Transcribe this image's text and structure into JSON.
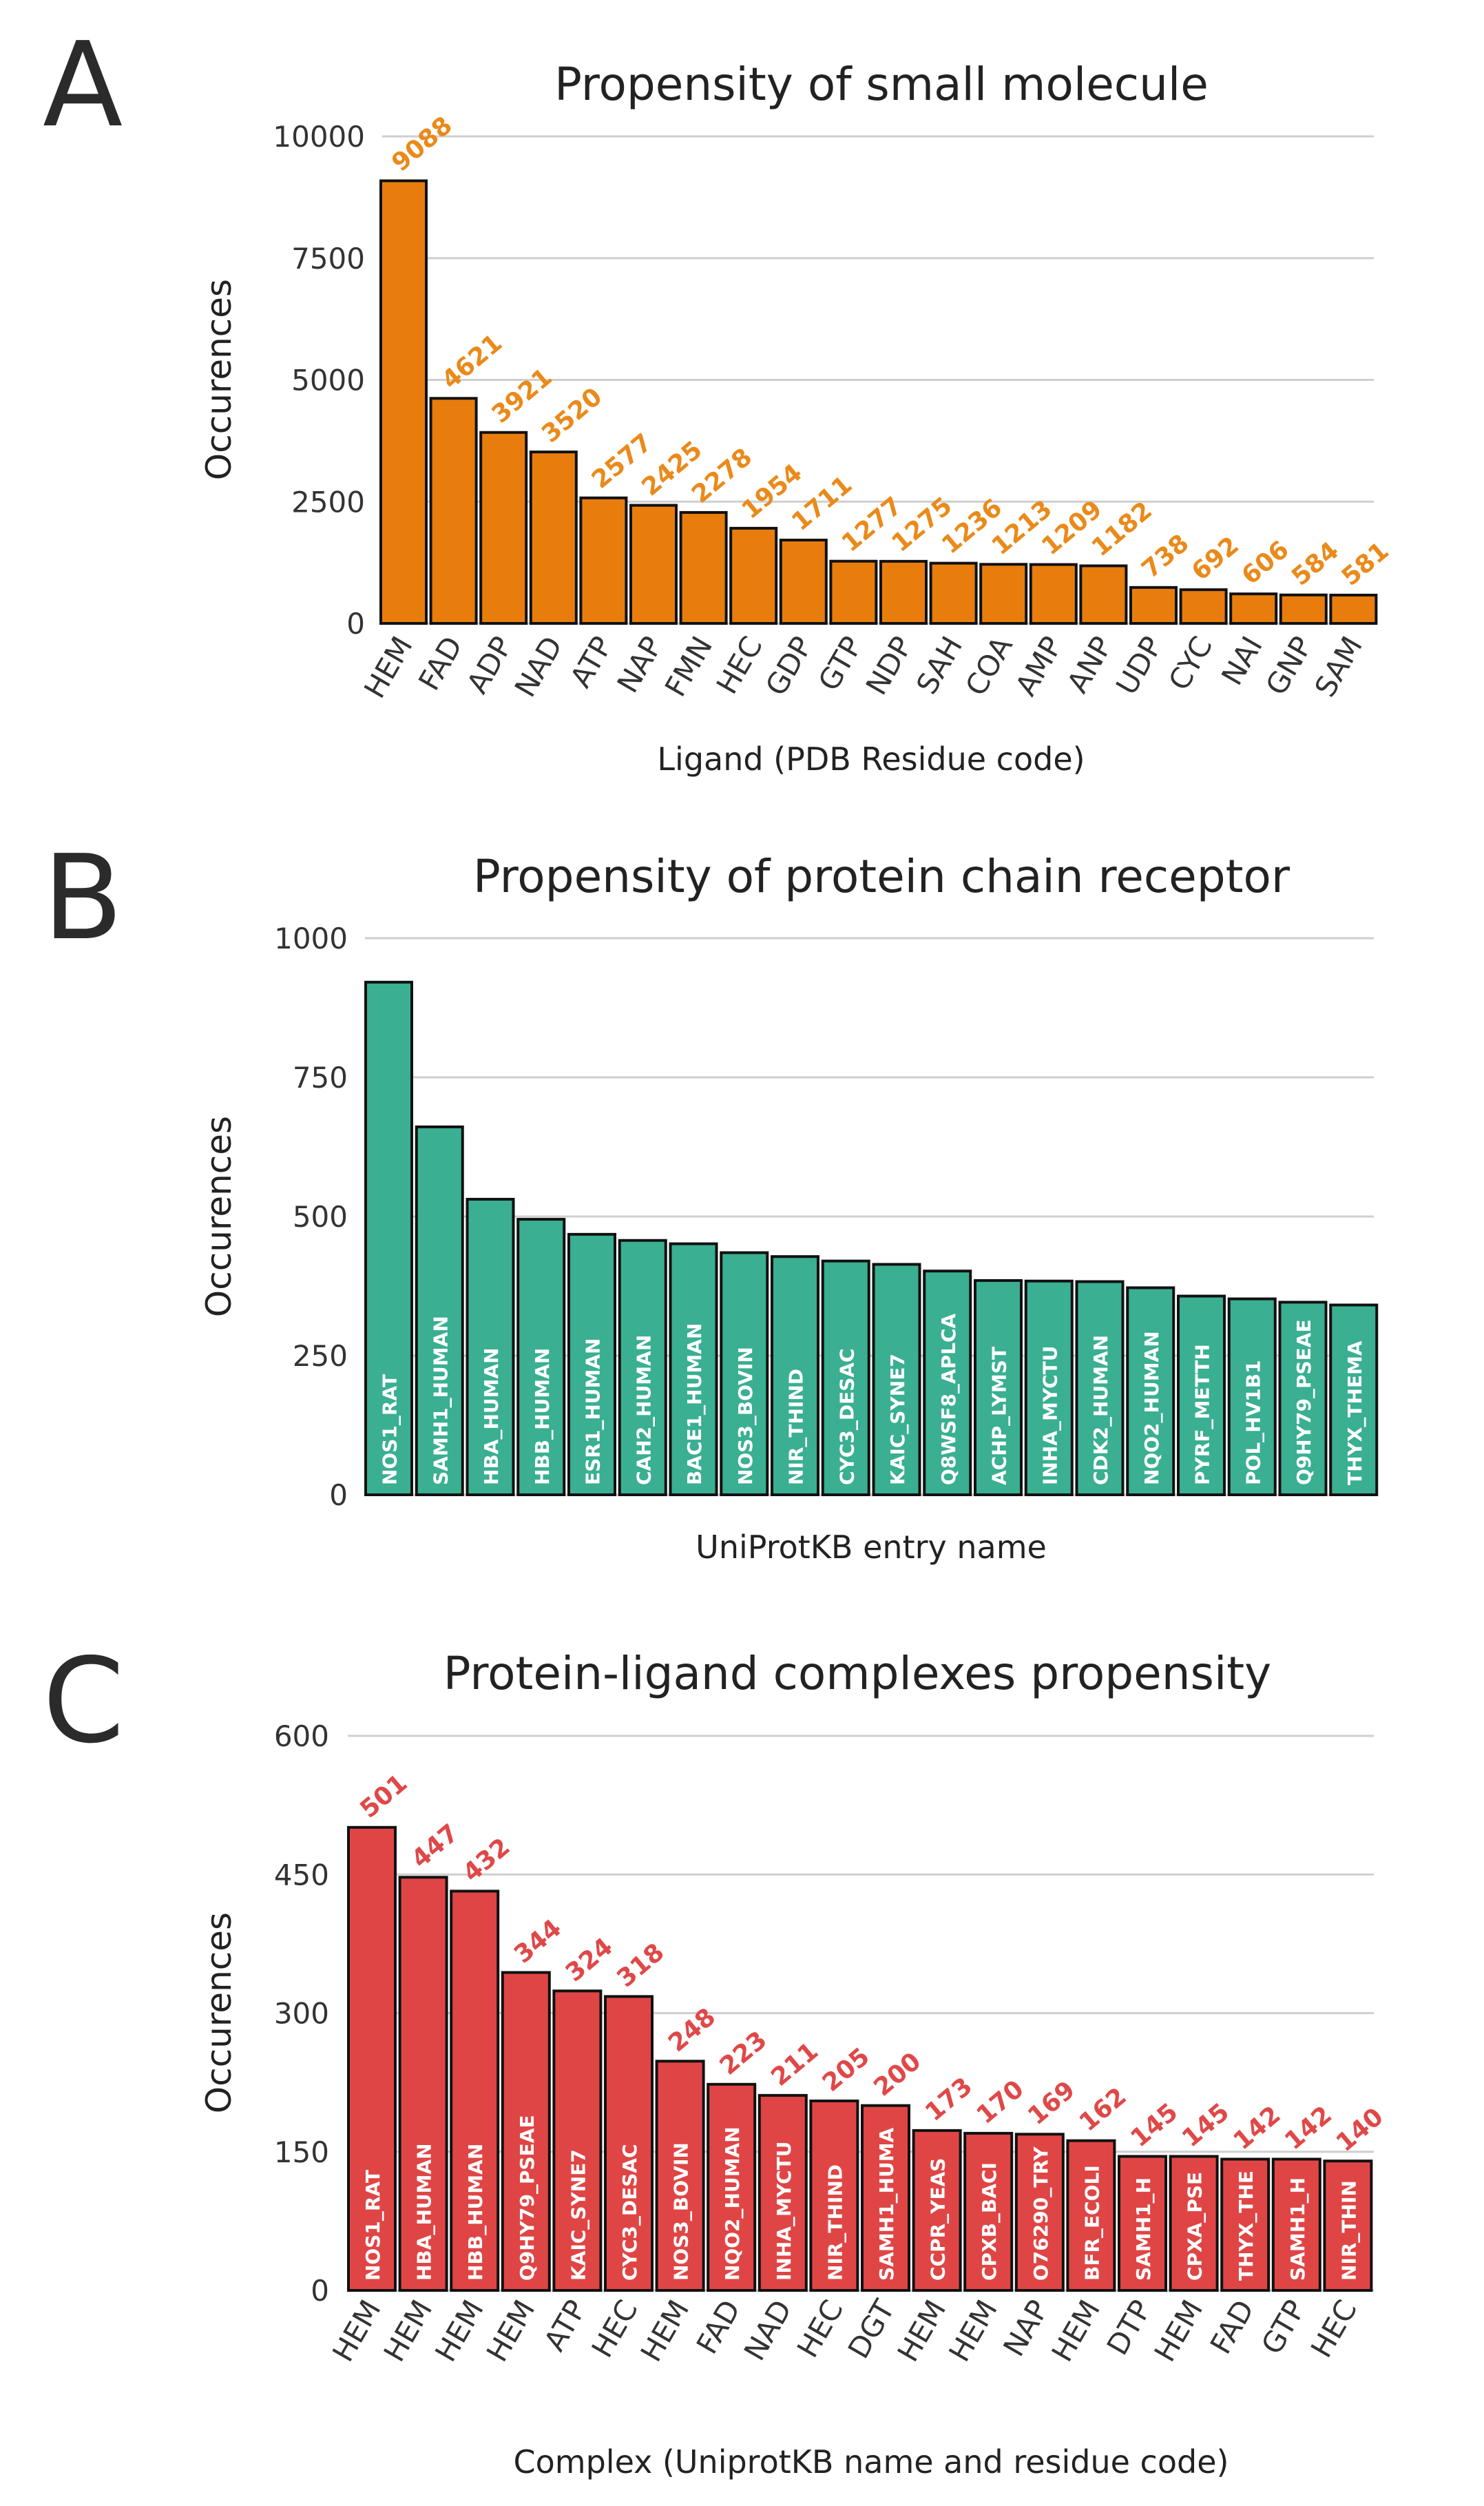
{
  "chart_data": [
    {
      "panel": "A",
      "type": "bar",
      "title": "Propensity of small molecule",
      "xlabel": "Ligand (PDB Residue code)",
      "ylabel": "Occurences",
      "ylim": [
        0,
        10000
      ],
      "yticks": [
        "0",
        "2500",
        "5000",
        "7500",
        "10000"
      ],
      "ytick_values": [
        0,
        2500,
        5000,
        7500,
        10000
      ],
      "categories": [
        "HEM",
        "FAD",
        "ADP",
        "NAD",
        "ATP",
        "NAP",
        "FMN",
        "HEC",
        "GDP",
        "GTP",
        "NDP",
        "SAH",
        "COA",
        "AMP",
        "ANP",
        "UDP",
        "CYC",
        "NAI",
        "GNP",
        "SAM"
      ],
      "values": [
        9088,
        4621,
        3921,
        3520,
        2577,
        2425,
        2278,
        1954,
        1711,
        1277,
        1275,
        1236,
        1213,
        1209,
        1182,
        738,
        692,
        606,
        584,
        581
      ],
      "value_labels": [
        "9088",
        "4621",
        "3921",
        "3520",
        "2577",
        "2425",
        "2278",
        "1954",
        "1711",
        "1277",
        "1275",
        "1236",
        "1213",
        "1209",
        "1182",
        "738",
        "692",
        "606",
        "584",
        "581"
      ],
      "bar_color": "#e87d0d",
      "label_color": "#ea8a1a",
      "grid": true
    },
    {
      "panel": "B",
      "type": "bar",
      "title": "Propensity of protein chain receptor",
      "xlabel": "UniProtKB entry name",
      "ylabel": "Occurences",
      "ylim": [
        0,
        1000
      ],
      "yticks": [
        "0",
        "250",
        "500",
        "750",
        "1000"
      ],
      "ytick_values": [
        0,
        250,
        500,
        750,
        1000
      ],
      "categories": [
        "NOS1_RAT",
        "SAMH1_HUMAN",
        "HBA_HUMAN",
        "HBB_HUMAN",
        "ESR1_HUMAN",
        "CAH2_HUMAN",
        "BACE1_HUMAN",
        "NOS3_BOVIN",
        "NIR_THIND",
        "CYC3_DESAC",
        "KAIC_SYNE7",
        "Q8WSF8_APLCA",
        "ACHP_LYMST",
        "INHA_MYCTU",
        "CDK2_HUMAN",
        "NQO2_HUMAN",
        "PYRF_METTH",
        "POL_HV1B1",
        "Q9HY79_PSEAE",
        "THYX_THEMA"
      ],
      "values": [
        921,
        661,
        531,
        495,
        468,
        457,
        451,
        435,
        428,
        420,
        414,
        402,
        385,
        384,
        383,
        372,
        357,
        352,
        346,
        341
      ],
      "bar_color": "#3aaf92",
      "grid": true
    },
    {
      "panel": "C",
      "type": "bar",
      "title": "Protein-ligand complexes propensity",
      "xlabel": "Complex (UniprotKB name and residue code)",
      "ylabel": "Occurences",
      "ylim": [
        0,
        600
      ],
      "yticks": [
        "0",
        "150",
        "300",
        "450",
        "600"
      ],
      "ytick_values": [
        0,
        150,
        300,
        450,
        600
      ],
      "categories": [
        "HEM",
        "HEM",
        "HEM",
        "HEM",
        "ATP",
        "HEC",
        "HEM",
        "FAD",
        "NAD",
        "HEC",
        "DGT",
        "HEM",
        "HEM",
        "NAP",
        "HEM",
        "DTP",
        "HEM",
        "FAD",
        "GTP",
        "HEC"
      ],
      "inner_labels": [
        "NOS1_RAT",
        "HBA_HUMAN",
        "HBB_HUMAN",
        "Q9HY79_PSEAE",
        "KAIC_SYNE7",
        "CYC3_DESAC",
        "NOS3_BOVIN",
        "NQO2_HUMAN",
        "INHA_MYCTU",
        "NIR_THIND",
        "SAMH1_HUMA",
        "CCPR_YEAS",
        "CPXB_BACI",
        "O76290_TRY",
        "BFR_ECOLI",
        "SAMH1_H",
        "CPXA_PSE",
        "THYX_THE",
        "SAMH1_H",
        "NIR_THIN"
      ],
      "values": [
        501,
        447,
        432,
        344,
        324,
        318,
        248,
        223,
        211,
        205,
        200,
        173,
        170,
        169,
        162,
        145,
        145,
        142,
        142,
        140
      ],
      "value_labels": [
        "501",
        "447",
        "432",
        "344",
        "324",
        "318",
        "248",
        "223",
        "211",
        "205",
        "200",
        "173",
        "170",
        "169",
        "162",
        "145",
        "145",
        "142",
        "142",
        "140"
      ],
      "bar_color": "#e04545",
      "label_color": "#e04848",
      "grid": true
    }
  ]
}
